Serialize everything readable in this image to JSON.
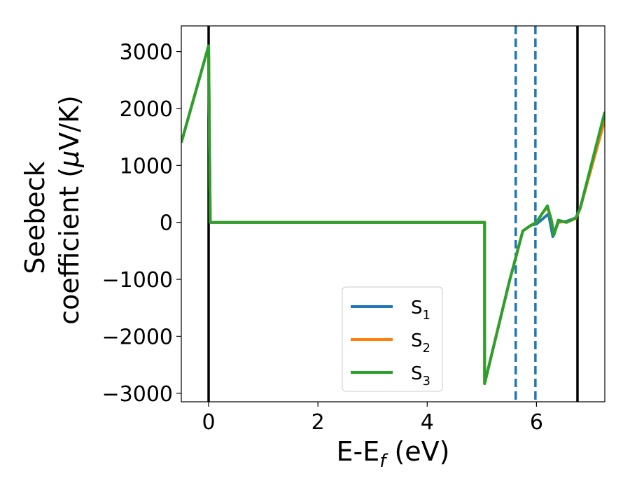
{
  "chart_data": {
    "type": "line",
    "xlabel_main": "E-E",
    "xlabel_sub": "f",
    "xlabel_unit": " (eV)",
    "ylabel_line1": "Seebeck",
    "ylabel_line2": "coefficient  (",
    "ylabel_mu": "μ",
    "ylabel_unit": "V/K)",
    "xlim": [
      -0.5,
      7.25
    ],
    "ylim": [
      -3150,
      3450
    ],
    "xticks": [
      0,
      2,
      4,
      6
    ],
    "xtick_labels": [
      "0",
      "2",
      "4",
      "6"
    ],
    "yticks": [
      3000,
      2000,
      1000,
      0,
      -1000,
      -2000,
      -3000
    ],
    "ytick_labels": [
      "3000",
      "2000",
      "1000",
      "0",
      "−1000",
      "−2000",
      "−3000"
    ],
    "vlines": [
      {
        "x": 0.0,
        "style": "solid",
        "color": "#000000"
      },
      {
        "x": 6.75,
        "style": "solid",
        "color": "#000000"
      },
      {
        "x": 5.62,
        "style": "dashed",
        "color": "#1f77b4"
      },
      {
        "x": 5.98,
        "style": "dashed",
        "color": "#1f77b4"
      }
    ],
    "legend_position": "lower-center",
    "series": [
      {
        "name": "S",
        "sub": "1",
        "color": "#1f77b4",
        "x": [
          -0.5,
          0.0,
          0.03,
          5.05,
          5.05,
          5.5,
          5.75,
          5.9,
          6.0,
          6.1,
          6.22,
          6.3,
          6.4,
          6.55,
          6.72,
          6.8,
          7.25
        ],
        "y": [
          1400,
          3100,
          0,
          0,
          -2830,
          -1050,
          -150,
          -50,
          -30,
          50,
          150,
          -250,
          0,
          20,
          80,
          250,
          1930
        ]
      },
      {
        "name": "S",
        "sub": "2",
        "color": "#ff7f0e",
        "x": [
          -0.5,
          0.0,
          0.03,
          5.05,
          5.05,
          5.5,
          5.75,
          5.9,
          6.0,
          6.1,
          6.2,
          6.27,
          6.32,
          6.4,
          6.55,
          6.72,
          6.8,
          7.25
        ],
        "y": [
          1400,
          3100,
          0,
          0,
          -2830,
          -1050,
          -150,
          -50,
          0,
          150,
          270,
          50,
          -200,
          20,
          0,
          70,
          250,
          1800
        ]
      },
      {
        "name": "S",
        "sub": "3",
        "color": "#2ca02c",
        "x": [
          -0.5,
          0.0,
          0.03,
          5.05,
          5.05,
          5.5,
          5.75,
          5.9,
          6.0,
          6.1,
          6.2,
          6.27,
          6.32,
          6.4,
          6.55,
          6.72,
          6.8,
          7.25
        ],
        "y": [
          1400,
          3100,
          0,
          0,
          -2830,
          -1050,
          -150,
          -50,
          0,
          150,
          290,
          50,
          -220,
          40,
          0,
          80,
          250,
          1940
        ]
      }
    ]
  }
}
